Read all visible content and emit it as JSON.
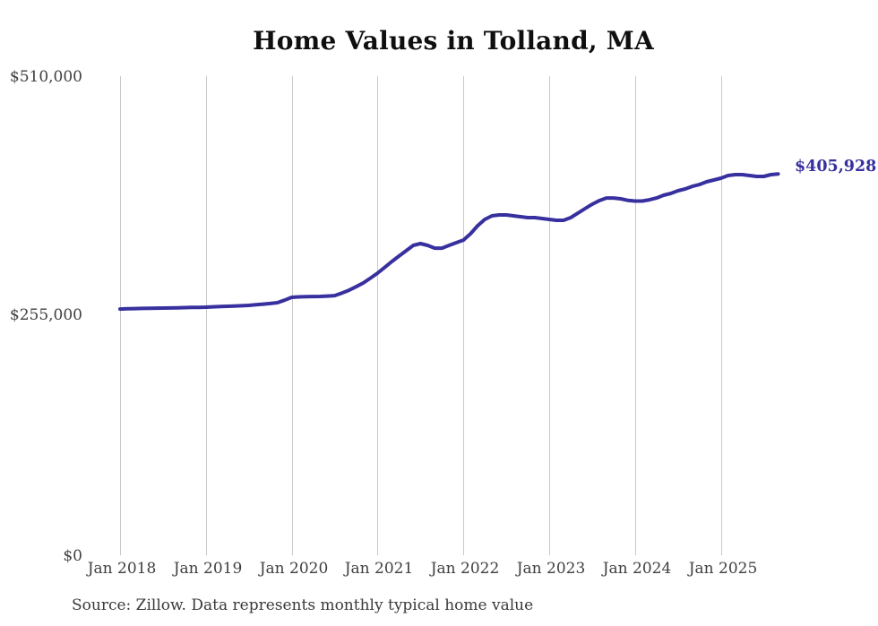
{
  "page": {
    "background": "#ffffff"
  },
  "chart": {
    "title": "Home Values in Tolland, MA",
    "source_note": "Source: Zillow. Data represents monthly typical home value"
  },
  "chart_data": {
    "type": "line",
    "title": "Home Values in Tolland, MA",
    "xlabel": "",
    "ylabel": "",
    "ylim": [
      0,
      510000
    ],
    "grid": "vertical-only",
    "legend": "none",
    "line_color": "#37309e",
    "grid_color": "#c9c9c9",
    "final_value": 405928,
    "final_value_label": "$405,928",
    "y_ticks": [
      {
        "label": "$510,000",
        "value": 510000
      },
      {
        "label": "$255,000",
        "value": 255000
      },
      {
        "label": "$0",
        "value": 0
      }
    ],
    "x_ticks": [
      {
        "label": "Jan 2018",
        "month_index": 0
      },
      {
        "label": "Jan 2019",
        "month_index": 12
      },
      {
        "label": "Jan 2020",
        "month_index": 24
      },
      {
        "label": "Jan 2021",
        "month_index": 36
      },
      {
        "label": "Jan 2022",
        "month_index": 48
      },
      {
        "label": "Jan 2023",
        "month_index": 60
      },
      {
        "label": "Jan 2024",
        "month_index": 72
      },
      {
        "label": "Jan 2025",
        "month_index": 84
      }
    ],
    "series": [
      {
        "name": "Monthly typical home value",
        "dates": [
          "2018-01",
          "2018-02",
          "2018-03",
          "2018-04",
          "2018-05",
          "2018-06",
          "2018-07",
          "2018-08",
          "2018-09",
          "2018-10",
          "2018-11",
          "2018-12",
          "2019-01",
          "2019-02",
          "2019-03",
          "2019-04",
          "2019-05",
          "2019-06",
          "2019-07",
          "2019-08",
          "2019-09",
          "2019-10",
          "2019-11",
          "2019-12",
          "2020-01",
          "2020-02",
          "2020-03",
          "2020-04",
          "2020-05",
          "2020-06",
          "2020-07",
          "2020-08",
          "2020-09",
          "2020-10",
          "2020-11",
          "2020-12",
          "2021-01",
          "2021-02",
          "2021-03",
          "2021-04",
          "2021-05",
          "2021-06",
          "2021-07",
          "2021-08",
          "2021-09",
          "2021-10",
          "2021-11",
          "2021-12",
          "2022-01",
          "2022-02",
          "2022-03",
          "2022-04",
          "2022-05",
          "2022-06",
          "2022-07",
          "2022-08",
          "2022-09",
          "2022-10",
          "2022-11",
          "2022-12",
          "2023-01",
          "2023-02",
          "2023-03",
          "2023-04",
          "2023-05",
          "2023-06",
          "2023-07",
          "2023-08",
          "2023-09",
          "2023-10",
          "2023-11",
          "2023-12",
          "2024-01",
          "2024-02",
          "2024-03",
          "2024-04",
          "2024-05",
          "2024-06",
          "2024-07",
          "2024-08",
          "2024-09",
          "2024-10",
          "2024-11",
          "2024-12",
          "2025-01",
          "2025-02",
          "2025-03",
          "2025-04",
          "2025-05",
          "2025-06",
          "2025-07",
          "2025-08",
          "2025-09"
        ],
        "values": [
          262100,
          262300,
          262500,
          262700,
          262900,
          263000,
          263100,
          263200,
          263400,
          263600,
          263800,
          263900,
          264100,
          264400,
          264700,
          265000,
          265300,
          265600,
          266000,
          266600,
          267300,
          268000,
          268800,
          271500,
          274500,
          275000,
          275300,
          275400,
          275500,
          275900,
          276400,
          279000,
          282100,
          285800,
          289800,
          294900,
          300300,
          306400,
          312700,
          318500,
          324100,
          329800,
          331700,
          329800,
          326900,
          326900,
          329800,
          332700,
          335500,
          342200,
          350800,
          357500,
          361300,
          362200,
          362200,
          361300,
          360300,
          359400,
          359400,
          358400,
          357500,
          356500,
          356500,
          359400,
          364100,
          368900,
          373600,
          377500,
          380300,
          380300,
          379400,
          377800,
          377000,
          377000,
          378400,
          380300,
          383200,
          385100,
          388000,
          389900,
          392700,
          394600,
          397500,
          399400,
          401300,
          404200,
          405100,
          405100,
          404200,
          403200,
          403200,
          405100,
          405928
        ]
      }
    ]
  }
}
